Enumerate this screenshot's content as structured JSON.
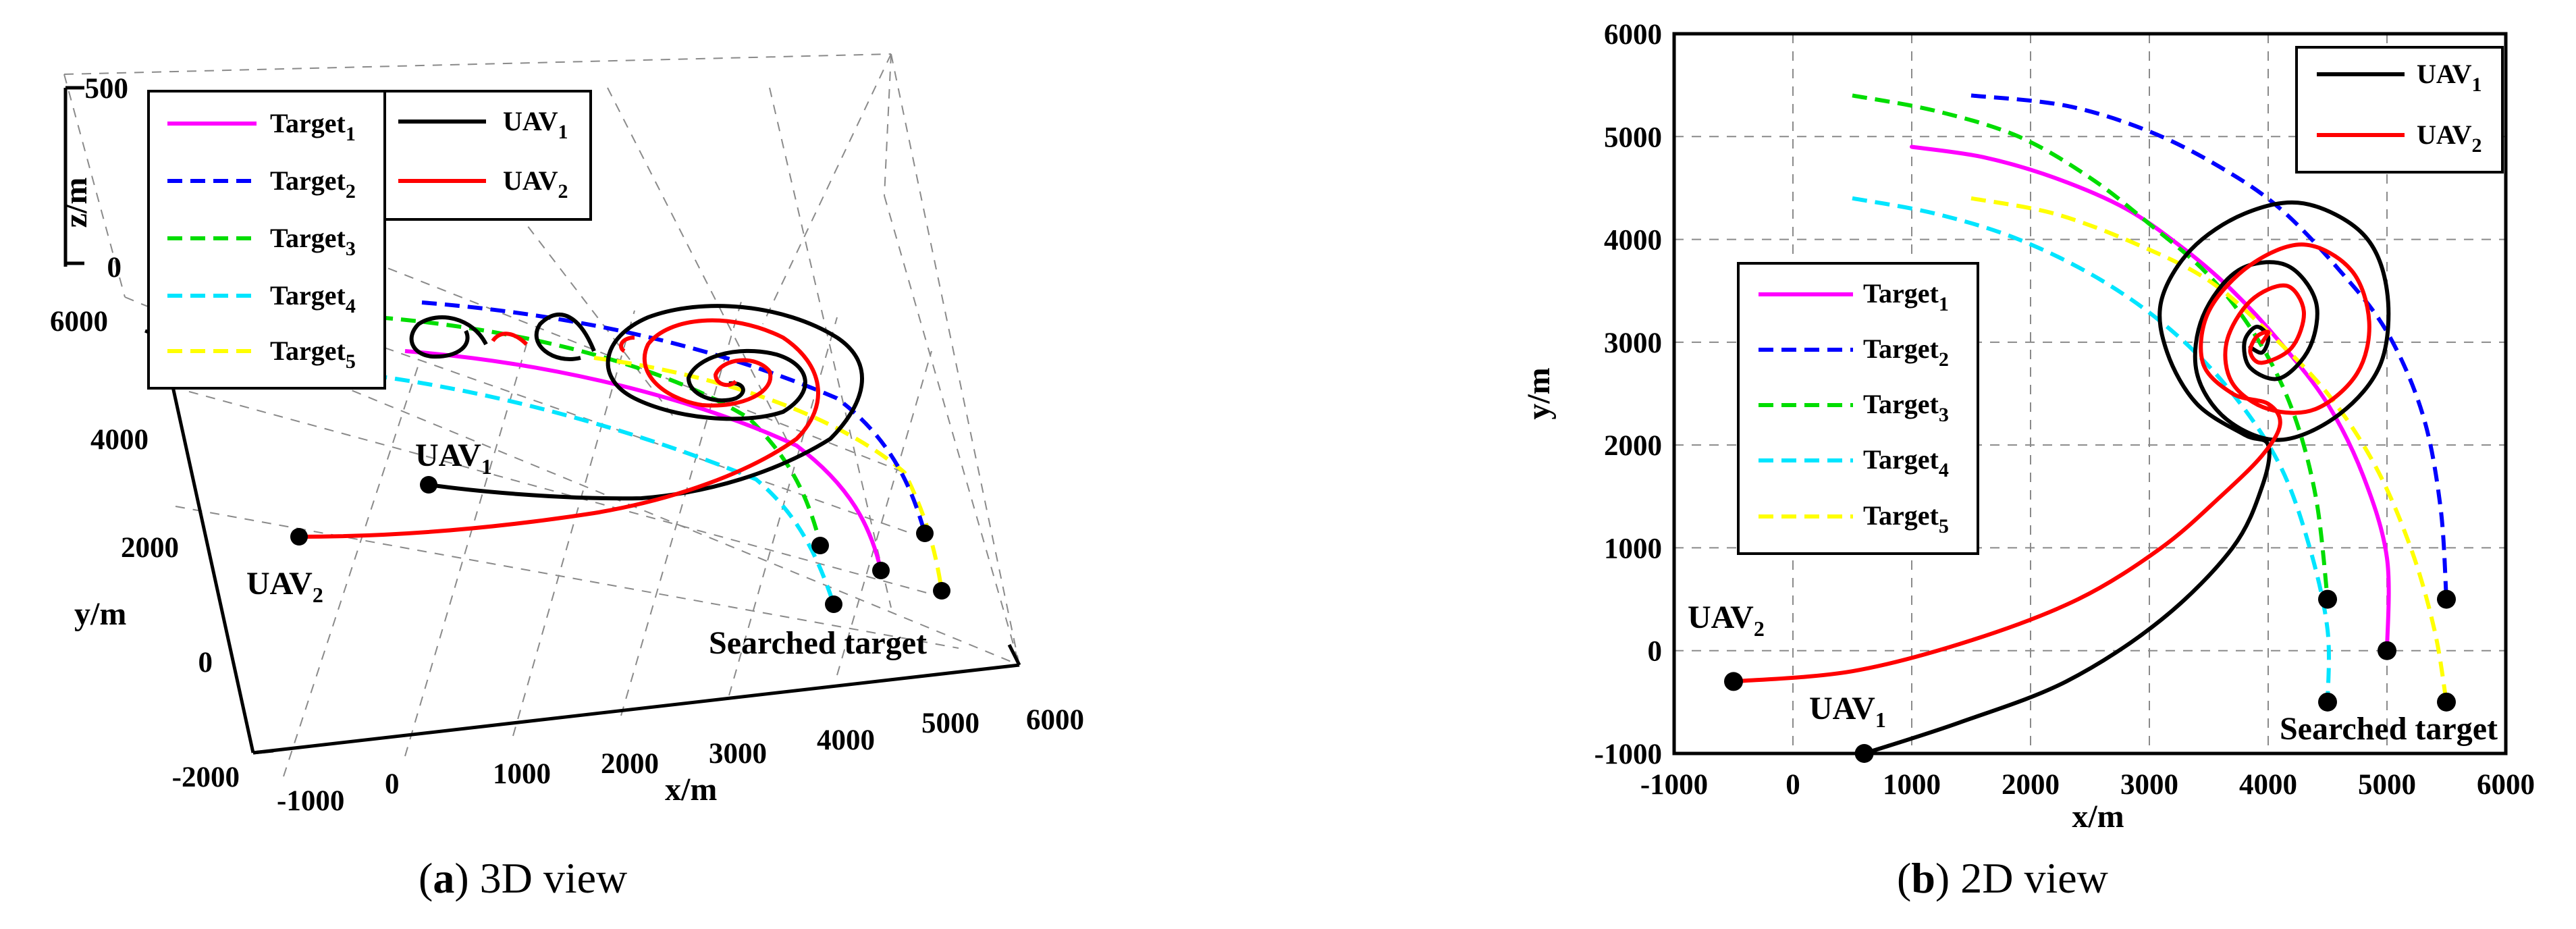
{
  "caption_a": {
    "letter": "a",
    "text": " 3D view"
  },
  "caption_b": {
    "letter": "b",
    "text": " 2D view"
  },
  "colors": {
    "Target1": "#ff00ff",
    "Target2": "#0000ff",
    "Target3": "#00dd00",
    "Target4": "#00e5ff",
    "Target5": "#ffff00",
    "UAV1": "#000000",
    "UAV2": "#ff0000"
  },
  "chart_data": [
    {
      "id": "a",
      "type": "line",
      "view": "3D",
      "xlabel": "x/m",
      "ylabel": "y/m",
      "zlabel": "z/m",
      "xlim": [
        -1000,
        6000
      ],
      "ylim": [
        -2000,
        6000
      ],
      "zlim": [
        0,
        500
      ],
      "xticks": [
        "-1000",
        "0",
        "1000",
        "2000",
        "3000",
        "4000",
        "5000",
        "6000"
      ],
      "yticks": [
        "-2000",
        "0",
        "2000",
        "4000",
        "6000"
      ],
      "zticks": [
        "0",
        "500"
      ],
      "grid": true,
      "annotations": {
        "uav1": "UAV",
        "uav2": "UAV",
        "searched": "Searched target"
      }
    },
    {
      "id": "b",
      "type": "line",
      "view": "2D",
      "xlabel": "x/m",
      "ylabel": "y/m",
      "xlim": [
        -1000,
        6000
      ],
      "ylim": [
        -1000,
        6000
      ],
      "xticks": [
        "-1000",
        "0",
        "1000",
        "2000",
        "3000",
        "4000",
        "5000",
        "6000"
      ],
      "yticks": [
        "-1000",
        "0",
        "1000",
        "2000",
        "3000",
        "4000",
        "5000",
        "6000"
      ],
      "grid": true,
      "annotations": {
        "uav1": "UAV",
        "uav2": "UAV",
        "searched": "Searched target"
      },
      "series": [
        {
          "name": "Target",
          "sub": "1",
          "color_key": "Target1",
          "dash": "solid",
          "x": [
            1000,
            1600,
            2200,
            2800,
            3300,
            3700,
            4100,
            4500,
            4800,
            5000,
            5000
          ],
          "y": [
            4900,
            4800,
            4600,
            4300,
            3900,
            3500,
            3000,
            2400,
            1700,
            900,
            0
          ]
        },
        {
          "name": "Target",
          "sub": "2",
          "color_key": "Target2",
          "dash": "dashed",
          "x": [
            1500,
            2300,
            3000,
            3600,
            4100,
            4600,
            5000,
            5300,
            5450,
            5500
          ],
          "y": [
            5400,
            5300,
            5050,
            4700,
            4300,
            3700,
            3100,
            2300,
            1400,
            500
          ]
        },
        {
          "name": "Target",
          "sub": "3",
          "color_key": "Target3",
          "dash": "dashed",
          "x": [
            500,
            1200,
            1900,
            2500,
            3000,
            3500,
            3900,
            4200,
            4400,
            4500
          ],
          "y": [
            5400,
            5250,
            5000,
            4600,
            4150,
            3650,
            3050,
            2350,
            1500,
            500
          ]
        },
        {
          "name": "Target",
          "sub": "4",
          "color_key": "Target4",
          "dash": "dashed",
          "x": [
            500,
            1200,
            1900,
            2600,
            3200,
            3700,
            4100,
            4350,
            4500,
            4500
          ],
          "y": [
            4400,
            4250,
            4000,
            3600,
            3100,
            2500,
            1800,
            1000,
            200,
            -500
          ]
        },
        {
          "name": "Target",
          "sub": "5",
          "color_key": "Target5",
          "dash": "dashed",
          "x": [
            1500,
            2200,
            2900,
            3500,
            4000,
            4500,
            4900,
            5200,
            5400,
            5500
          ],
          "y": [
            4400,
            4250,
            3950,
            3600,
            3100,
            2500,
            1800,
            1000,
            200,
            -500
          ]
        },
        {
          "name": "UAV",
          "sub": "1",
          "color_key": "UAV1",
          "dash": "solid",
          "x": [
            600,
            1400,
            2300,
            3100,
            3700,
            3950,
            4000,
            3800,
            3400,
            3150,
            3100,
            3350,
            3800,
            4300,
            4800,
            5000,
            4950,
            4600,
            4100,
            3650,
            3400,
            3450,
            3750,
            4150,
            4400,
            4350,
            4100,
            3850,
            3800,
            3900,
            4000,
            3950,
            3850
          ],
          "y": [
            -1000,
            -700,
            -300,
            300,
            1000,
            1600,
            2000,
            2100,
            2400,
            2900,
            3400,
            3900,
            4250,
            4350,
            4050,
            3500,
            2800,
            2300,
            2050,
            2250,
            2700,
            3250,
            3700,
            3750,
            3400,
            2950,
            2650,
            2750,
            3000,
            3150,
            3050,
            2900,
            2950
          ]
        },
        {
          "name": "UAV",
          "sub": "2",
          "color_key": "UAV2",
          "dash": "solid",
          "x": [
            -500,
            500,
            1500,
            2400,
            3100,
            3600,
            3950,
            4100,
            4000,
            3700,
            3450,
            3500,
            3850,
            4300,
            4700,
            4850,
            4750,
            4400,
            4000,
            3700,
            3650,
            3850,
            4150,
            4300,
            4200,
            3950,
            3850,
            3900,
            4000,
            3950
          ],
          "y": [
            -300,
            -200,
            100,
            500,
            1000,
            1500,
            1900,
            2200,
            2400,
            2500,
            2800,
            3300,
            3750,
            3950,
            3700,
            3200,
            2700,
            2350,
            2350,
            2600,
            3000,
            3400,
            3550,
            3300,
            2950,
            2800,
            2900,
            3050,
            3100,
            3000
          ]
        }
      ],
      "start_points": {
        "x": [
          600,
          -500
        ],
        "y": [
          -1000,
          -300
        ]
      },
      "target_points": {
        "x": [
          4500,
          5000,
          5500,
          4500,
          5500
        ],
        "y": [
          500,
          0,
          500,
          -500,
          -500
        ]
      }
    }
  ]
}
